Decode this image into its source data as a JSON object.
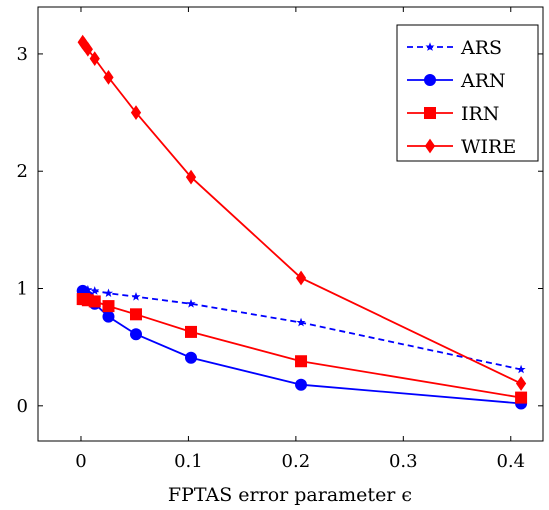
{
  "chart_data": {
    "type": "line",
    "title": "",
    "xlabel": "FPTAS error parameter ϵ",
    "ylabel": "",
    "xlim": [
      -0.04,
      0.43
    ],
    "ylim": [
      -0.3,
      3.4
    ],
    "xticks": [
      0,
      0.1,
      0.2,
      0.3,
      0.4
    ],
    "xtick_labels": [
      "0",
      "0.1",
      "0.2",
      "0.3",
      "0.4"
    ],
    "yticks": [
      0,
      1,
      2,
      3
    ],
    "ytick_labels": [
      "0",
      "1",
      "2",
      "3"
    ],
    "grid": false,
    "legend_position": "top-right",
    "series": [
      {
        "name": "ARS",
        "color": "#0000ff",
        "line_style": "dashed",
        "marker": "star",
        "x": [
          0.0016,
          0.0032,
          0.0064,
          0.0128,
          0.0256,
          0.0512,
          0.1024,
          0.2048,
          0.4096
        ],
        "y": [
          0.99,
          0.99,
          0.99,
          0.98,
          0.96,
          0.93,
          0.87,
          0.71,
          0.31
        ]
      },
      {
        "name": "ARN",
        "color": "#0000ff",
        "line_style": "solid",
        "marker": "circle",
        "x": [
          0.0016,
          0.0032,
          0.0064,
          0.0128,
          0.0256,
          0.0512,
          0.1024,
          0.2048,
          0.4096
        ],
        "y": [
          0.98,
          0.96,
          0.93,
          0.87,
          0.76,
          0.61,
          0.41,
          0.18,
          0.02
        ]
      },
      {
        "name": "IRN",
        "color": "#ff0000",
        "line_style": "solid",
        "marker": "square",
        "x": [
          0.0016,
          0.0032,
          0.0064,
          0.0128,
          0.0256,
          0.0512,
          0.1024,
          0.2048,
          0.4096
        ],
        "y": [
          0.91,
          0.91,
          0.9,
          0.89,
          0.85,
          0.78,
          0.63,
          0.38,
          0.07
        ]
      },
      {
        "name": "WIRE",
        "color": "#ff0000",
        "line_style": "solid",
        "marker": "diamond",
        "x": [
          0.0016,
          0.0032,
          0.0064,
          0.0128,
          0.0256,
          0.0512,
          0.1024,
          0.2048,
          0.4096
        ],
        "y": [
          3.1,
          3.08,
          3.04,
          2.96,
          2.8,
          2.5,
          1.95,
          1.09,
          0.19
        ]
      }
    ]
  }
}
